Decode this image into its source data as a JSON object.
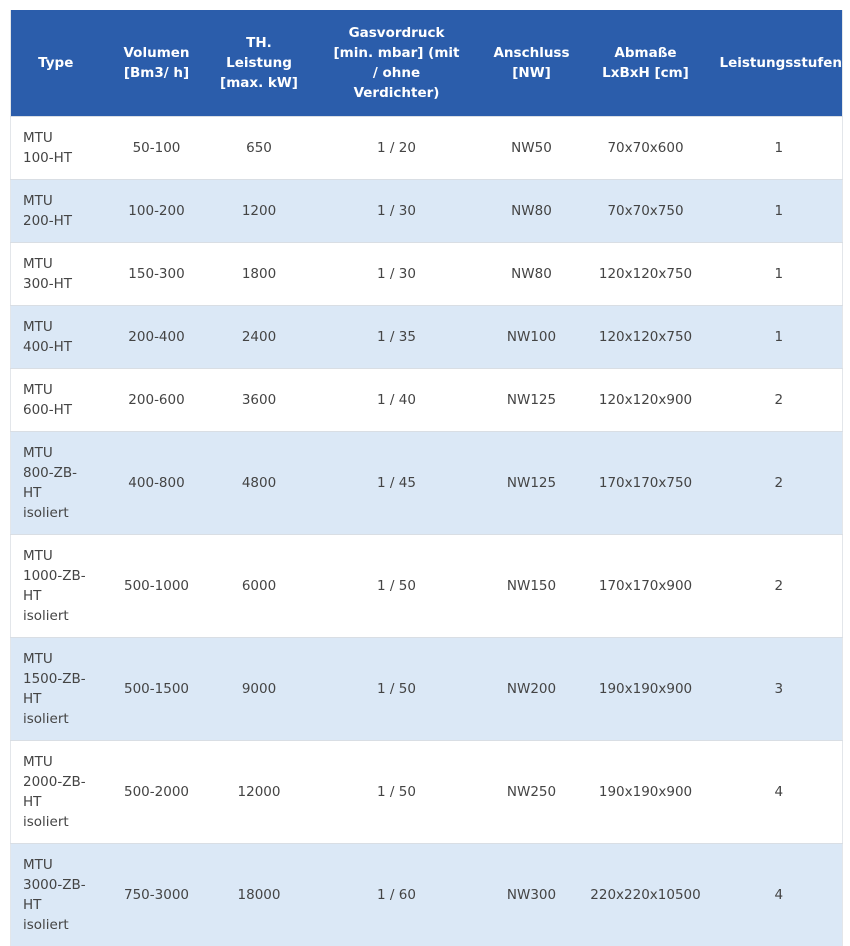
{
  "table": {
    "headers": [
      "Type",
      "Volumen [Bm3/ h]",
      "TH. Leistung [max. kW]",
      "Gasvordruck [min. mbar] (mit / ohne Verdichter)",
      "Anschluss [NW]",
      "Abmaße LxBxH [cm]",
      "Leistungsstufen"
    ],
    "rows": [
      [
        "MTU 100-HT",
        "50-100",
        "650",
        "1 / 20",
        "NW50",
        "70x70x600",
        "1"
      ],
      [
        "MTU 200-HT",
        "100-200",
        "1200",
        "1 / 30",
        "NW80",
        "70x70x750",
        "1"
      ],
      [
        "MTU 300-HT",
        "150-300",
        "1800",
        "1 / 30",
        "NW80",
        "120x120x750",
        "1"
      ],
      [
        "MTU 400-HT",
        "200-400",
        "2400",
        "1 / 35",
        "NW100",
        "120x120x750",
        "1"
      ],
      [
        "MTU 600-HT",
        "200-600",
        "3600",
        "1 / 40",
        "NW125",
        "120x120x900",
        "2"
      ],
      [
        "MTU 800-ZB-HT isoliert",
        "400-800",
        "4800",
        "1 / 45",
        "NW125",
        "170x170x750",
        "2"
      ],
      [
        "MTU 1000-ZB-HT isoliert",
        "500-1000",
        "6000",
        "1 / 50",
        "NW150",
        "170x170x900",
        "2"
      ],
      [
        "MTU 1500-ZB-HT isoliert",
        "500-1500",
        "9000",
        "1 / 50",
        "NW200",
        "190x190x900",
        "3"
      ],
      [
        "MTU 2000-ZB-HT isoliert",
        "500-2000",
        "12000",
        "1 / 50",
        "NW250",
        "190x190x900",
        "4"
      ],
      [
        "MTU 3000-ZB-HT isoliert",
        "750-3000",
        "18000",
        "1 / 60",
        "NW300",
        "220x220x10500",
        "4"
      ]
    ]
  }
}
